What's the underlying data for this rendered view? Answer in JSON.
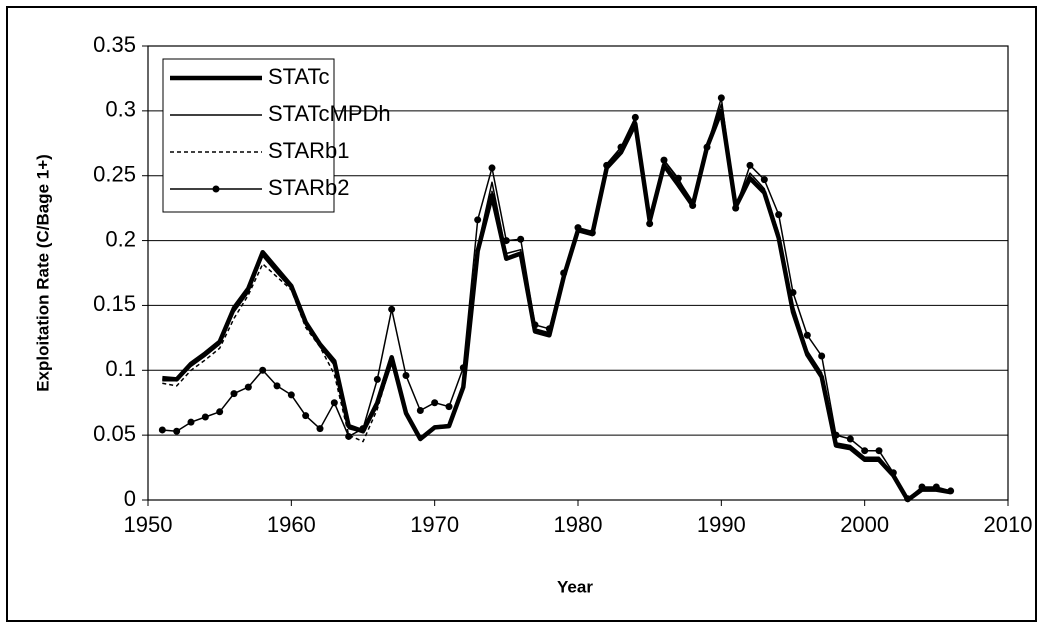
{
  "chart_data": {
    "type": "line",
    "x_label": "Year",
    "y_label": "Exploitation Rate (C/Bage 1+)",
    "xlim": [
      1950,
      2010
    ],
    "xticks": [
      1950,
      1960,
      1970,
      1980,
      1990,
      2000,
      2010
    ],
    "ylim": [
      0,
      0.35
    ],
    "yticks": [
      0,
      0.05,
      0.1,
      0.15,
      0.2,
      0.25,
      0.3,
      0.35
    ],
    "grid": true,
    "legend": "upper left",
    "x": [
      1951,
      1952,
      1953,
      1954,
      1955,
      1956,
      1957,
      1958,
      1959,
      1960,
      1961,
      1962,
      1963,
      1964,
      1965,
      1966,
      1967,
      1968,
      1969,
      1970,
      1971,
      1972,
      1973,
      1974,
      1975,
      1976,
      1977,
      1978,
      1979,
      1980,
      1981,
      1982,
      1983,
      1984,
      1985,
      1986,
      1987,
      1988,
      1989,
      1990,
      1991,
      1992,
      1993,
      1994,
      1995,
      1996,
      1997,
      1998,
      1999,
      2000,
      2001,
      2002,
      2003,
      2004,
      2005,
      2006
    ],
    "series": [
      {
        "name": "STATc",
        "color": "#000000",
        "line_width": 4.5,
        "dash": "none",
        "marker": false,
        "values": [
          0.094,
          0.093,
          0.105,
          0.113,
          0.122,
          0.148,
          0.163,
          0.191,
          0.178,
          0.165,
          0.137,
          0.12,
          0.107,
          0.057,
          0.053,
          0.075,
          0.11,
          0.067,
          0.047,
          0.056,
          0.057,
          0.087,
          0.192,
          0.235,
          0.186,
          0.19,
          0.13,
          0.127,
          0.172,
          0.208,
          0.205,
          0.256,
          0.268,
          0.29,
          0.215,
          0.258,
          0.243,
          0.227,
          0.272,
          0.3,
          0.226,
          0.248,
          0.237,
          0.202,
          0.145,
          0.112,
          0.095,
          0.042,
          0.04,
          0.031,
          0.031,
          0.019,
          0.0,
          0.008,
          0.008,
          0.006
        ]
      },
      {
        "name": "STATcMPDh",
        "color": "#000000",
        "line_width": 1.5,
        "dash": "none",
        "marker": false,
        "values": [
          0.092,
          0.092,
          0.103,
          0.111,
          0.12,
          0.145,
          0.16,
          0.188,
          0.175,
          0.163,
          0.135,
          0.118,
          0.104,
          0.055,
          0.052,
          0.072,
          0.105,
          0.066,
          0.048,
          0.057,
          0.058,
          0.09,
          0.195,
          0.245,
          0.19,
          0.193,
          0.132,
          0.129,
          0.173,
          0.21,
          0.207,
          0.259,
          0.272,
          0.294,
          0.218,
          0.262,
          0.247,
          0.23,
          0.274,
          0.305,
          0.228,
          0.252,
          0.24,
          0.206,
          0.15,
          0.115,
          0.098,
          0.044,
          0.042,
          0.033,
          0.033,
          0.02,
          0.001,
          0.009,
          0.009,
          0.006
        ]
      },
      {
        "name": "STARb1",
        "color": "#000000",
        "line_width": 1.5,
        "dash": "4,3",
        "marker": false,
        "values": [
          0.09,
          0.088,
          0.1,
          0.108,
          0.117,
          0.14,
          0.158,
          0.182,
          0.172,
          0.162,
          0.133,
          0.118,
          0.097,
          0.05,
          0.045,
          0.07,
          0.107,
          0.066,
          0.047,
          0.056,
          0.057,
          0.088,
          0.193,
          0.238,
          0.187,
          0.191,
          0.131,
          0.128,
          0.172,
          0.209,
          0.206,
          0.257,
          0.27,
          0.292,
          0.216,
          0.26,
          0.245,
          0.228,
          0.273,
          0.302,
          0.227,
          0.25,
          0.238,
          0.204,
          0.147,
          0.113,
          0.096,
          0.043,
          0.041,
          0.032,
          0.032,
          0.019,
          0.0,
          0.008,
          0.008,
          0.006
        ]
      },
      {
        "name": "STARb2",
        "color": "#000000",
        "line_width": 1.5,
        "dash": "none",
        "marker": true,
        "values": [
          0.054,
          0.053,
          0.06,
          0.064,
          0.068,
          0.082,
          0.087,
          0.1,
          0.088,
          0.081,
          0.065,
          0.055,
          0.075,
          0.049,
          0.055,
          0.093,
          0.147,
          0.096,
          0.069,
          0.075,
          0.072,
          0.102,
          0.216,
          0.256,
          0.2,
          0.201,
          0.135,
          0.132,
          0.175,
          0.21,
          0.206,
          0.258,
          0.272,
          0.295,
          0.213,
          0.262,
          0.248,
          0.227,
          0.272,
          0.31,
          0.225,
          0.258,
          0.247,
          0.22,
          0.16,
          0.127,
          0.111,
          0.05,
          0.047,
          0.038,
          0.038,
          0.021,
          0.001,
          0.01,
          0.01,
          0.007
        ]
      }
    ]
  }
}
